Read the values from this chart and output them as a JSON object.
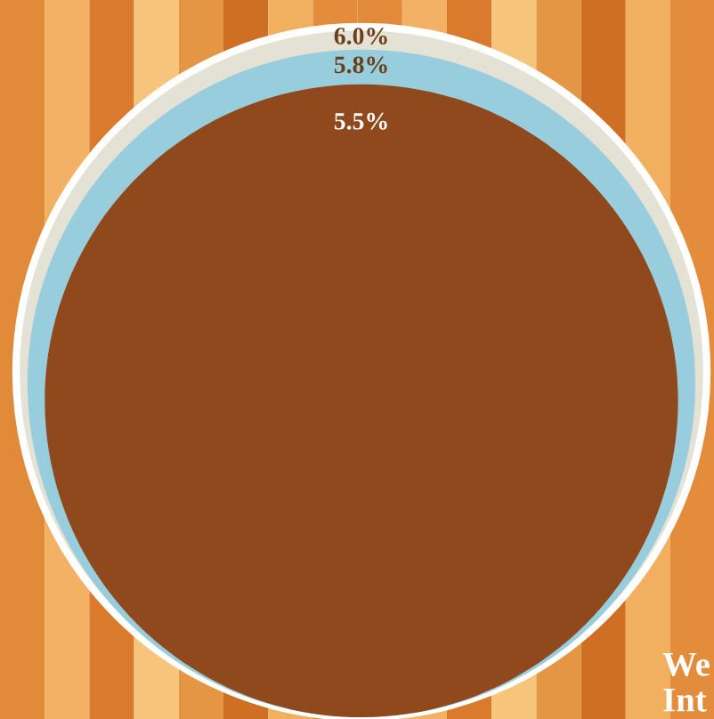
{
  "chart_data": {
    "type": "other",
    "categories": [
      null,
      null,
      null
    ],
    "values": [
      6.0,
      5.8,
      5.5
    ],
    "value_labels": [
      "6.0%",
      "5.8%",
      "5.5%"
    ],
    "colors": [
      "#e4e1d5",
      "#98cddd",
      "#8f491c"
    ],
    "annotations": [
      "We",
      "Int"
    ]
  }
}
